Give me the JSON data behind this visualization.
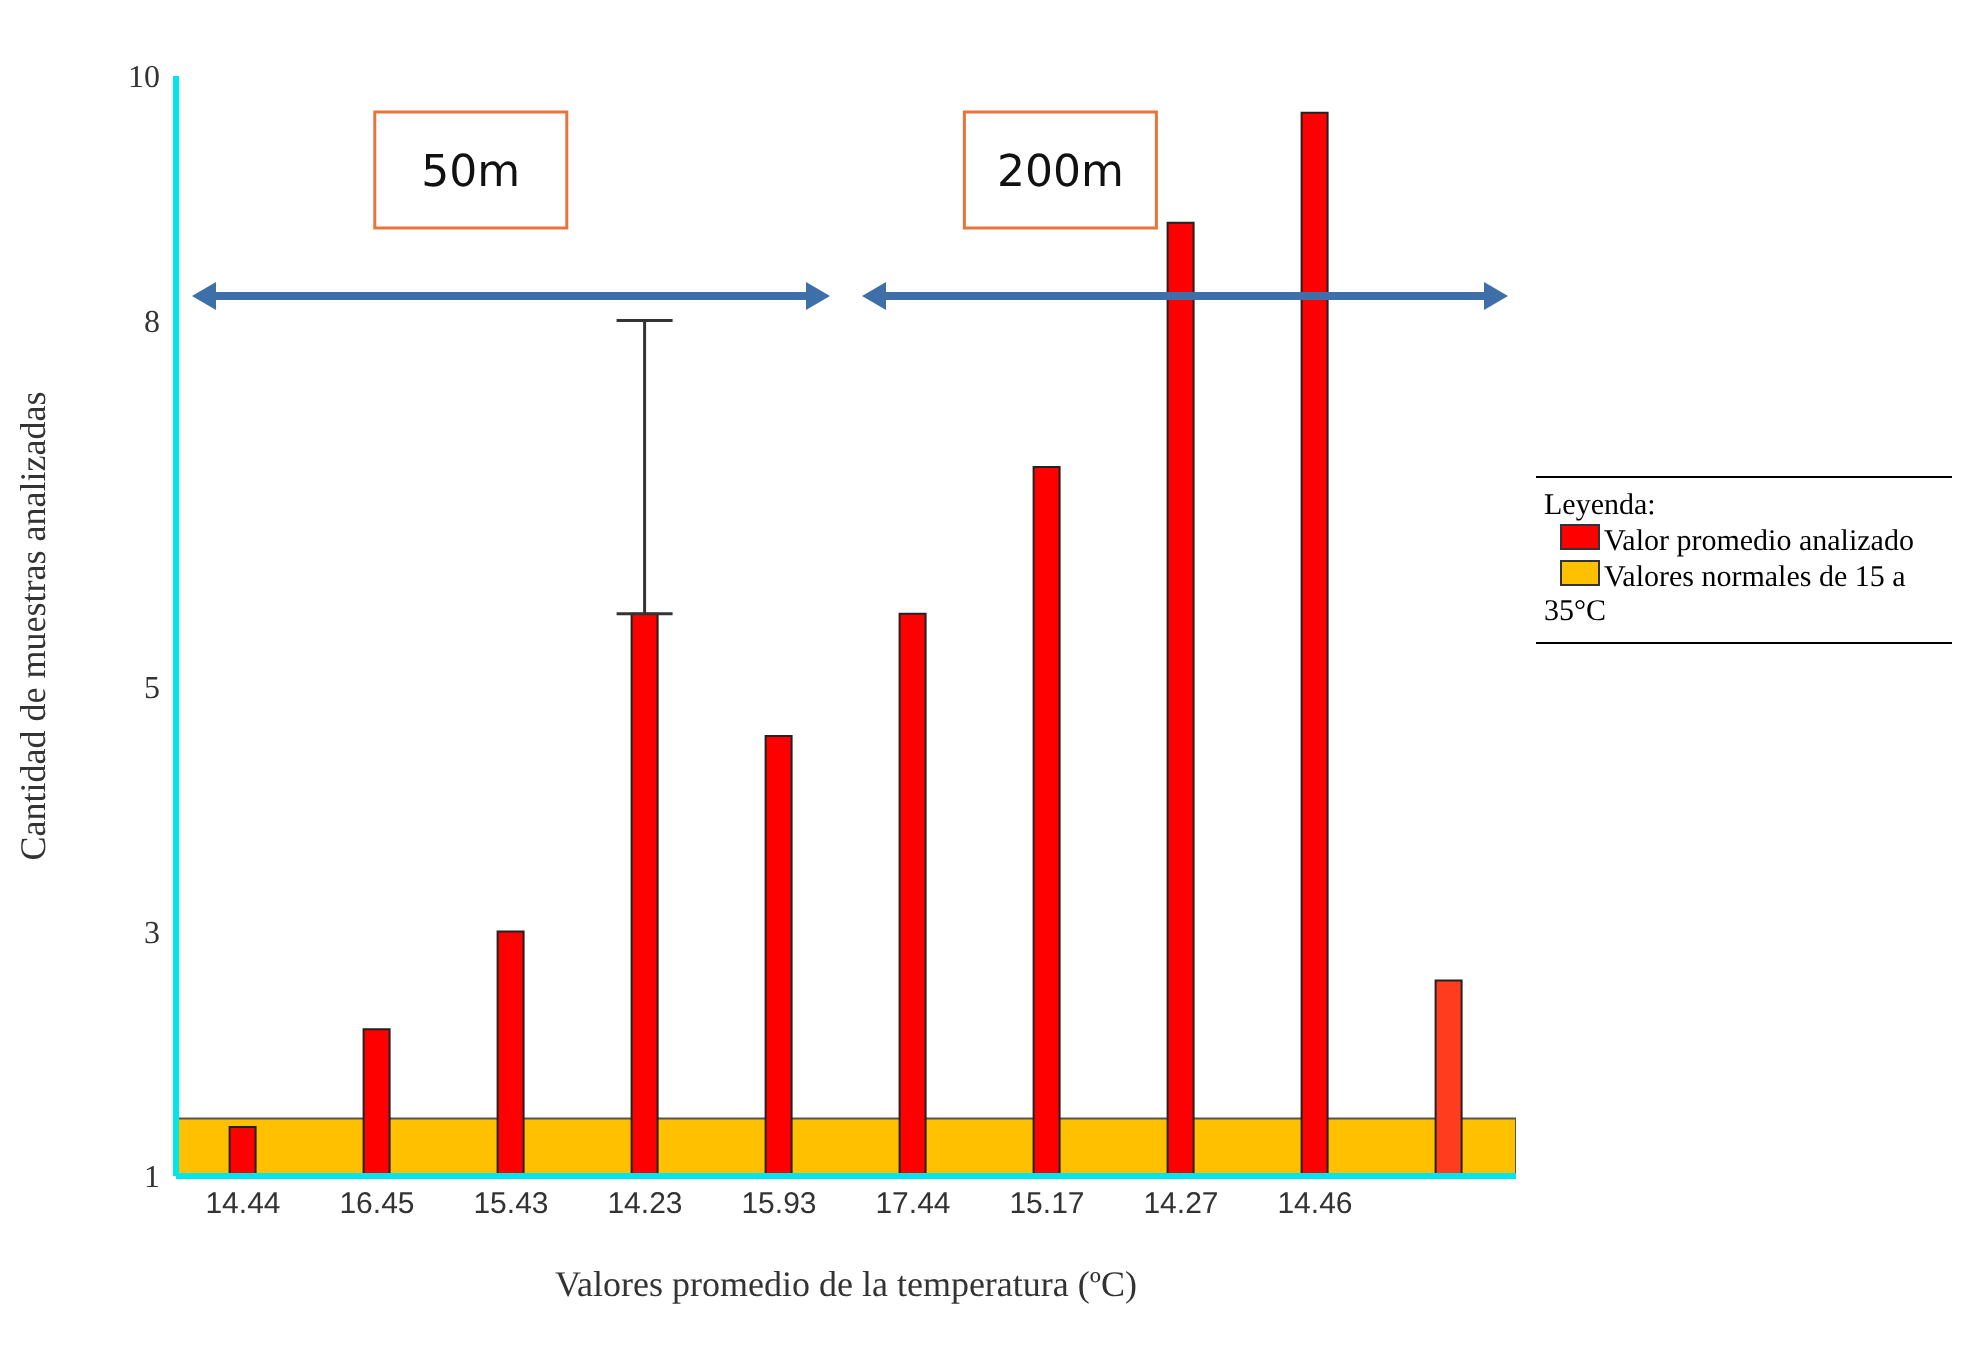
{
  "chart_data": {
    "type": "bar",
    "xlabel": "Valores promedio de la temperatura (ºC)",
    "ylabel": "Cantidad de muestras analizadas",
    "legend_title": "Leyenda:",
    "categories": [
      "14.44",
      "16.45",
      "15.43",
      "14.23",
      "15.93",
      "17.44",
      "15.17",
      "14.27",
      "14.46",
      null
    ],
    "series": [
      {
        "name": "Valor promedio analizado",
        "color": "#ff0000",
        "colors": [
          "#ff0000",
          "#ff0000",
          "#ff0000",
          "#ff0000",
          "#ff0000",
          "#ff0000",
          "#ff0000",
          "#ff0000",
          "#ff0000",
          "#ff3c1e"
        ],
        "values": [
          1.4,
          2.2,
          3,
          5.6,
          4.6,
          5.6,
          6.8,
          8.8,
          9.7,
          2.6
        ],
        "errors": [
          null,
          null,
          null,
          [
            5.6,
            8
          ],
          null,
          null,
          null,
          null,
          null,
          null
        ]
      }
    ],
    "bands": [
      {
        "axis": "y",
        "from": 1,
        "to": 1.47,
        "label": "Valores normales de 15 a 35°C",
        "color": "#ffc000"
      }
    ],
    "annotations": [
      "50m",
      "200m"
    ],
    "ylim": [
      1,
      10
    ],
    "yticks": [
      1,
      3,
      5,
      8,
      10
    ],
    "grid": false,
    "legend": "right"
  }
}
